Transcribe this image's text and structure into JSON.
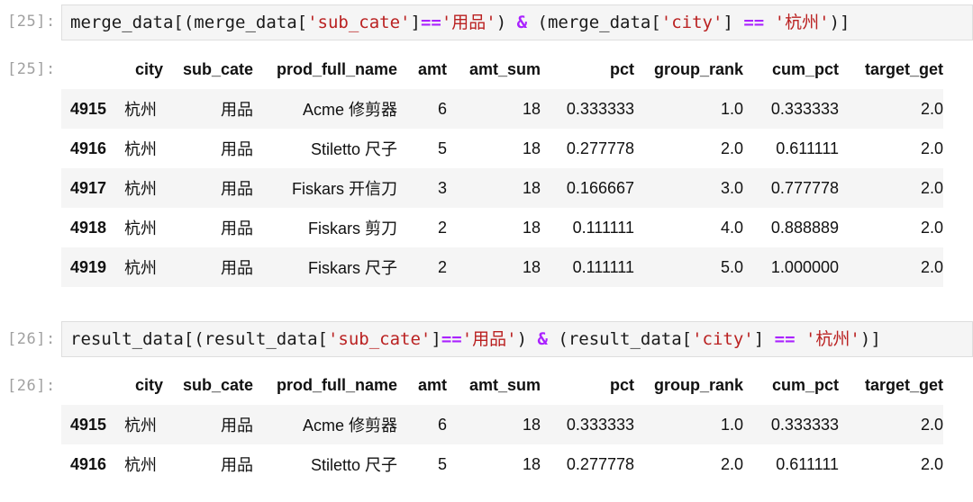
{
  "cells": [
    {
      "input_prompt": "[25]:",
      "code_tokens": [
        {
          "text": "merge_data[(merge_data[",
          "kind": "plain"
        },
        {
          "text": "'sub_cate'",
          "kind": "str"
        },
        {
          "text": "]",
          "kind": "plain"
        },
        {
          "text": "==",
          "kind": "op"
        },
        {
          "text": "'用品'",
          "kind": "str"
        },
        {
          "text": ") ",
          "kind": "plain"
        },
        {
          "text": "&",
          "kind": "op"
        },
        {
          "text": " (merge_data[",
          "kind": "plain"
        },
        {
          "text": "'city'",
          "kind": "str"
        },
        {
          "text": "] ",
          "kind": "plain"
        },
        {
          "text": "==",
          "kind": "op"
        },
        {
          "text": " ",
          "kind": "plain"
        },
        {
          "text": "'杭州'",
          "kind": "str"
        },
        {
          "text": ")]",
          "kind": "plain"
        }
      ],
      "output_prompt": "[25]:",
      "table": {
        "columns": [
          "city",
          "sub_cate",
          "prod_full_name",
          "amt",
          "amt_sum",
          "pct",
          "group_rank",
          "cum_pct",
          "target_get"
        ],
        "rows": [
          {
            "index": "4915",
            "values": [
              "杭州",
              "用品",
              "Acme 修剪器",
              "6",
              "18",
              "0.333333",
              "1.0",
              "0.333333",
              "2.0"
            ]
          },
          {
            "index": "4916",
            "values": [
              "杭州",
              "用品",
              "Stiletto 尺子",
              "5",
              "18",
              "0.277778",
              "2.0",
              "0.611111",
              "2.0"
            ]
          },
          {
            "index": "4917",
            "values": [
              "杭州",
              "用品",
              "Fiskars 开信刀",
              "3",
              "18",
              "0.166667",
              "3.0",
              "0.777778",
              "2.0"
            ]
          },
          {
            "index": "4918",
            "values": [
              "杭州",
              "用品",
              "Fiskars 剪刀",
              "2",
              "18",
              "0.111111",
              "4.0",
              "0.888889",
              "2.0"
            ]
          },
          {
            "index": "4919",
            "values": [
              "杭州",
              "用品",
              "Fiskars 尺子",
              "2",
              "18",
              "0.111111",
              "5.0",
              "1.000000",
              "2.0"
            ]
          }
        ]
      }
    },
    {
      "input_prompt": "[26]:",
      "code_tokens": [
        {
          "text": "result_data[(result_data[",
          "kind": "plain"
        },
        {
          "text": "'sub_cate'",
          "kind": "str"
        },
        {
          "text": "]",
          "kind": "plain"
        },
        {
          "text": "==",
          "kind": "op"
        },
        {
          "text": "'用品'",
          "kind": "str"
        },
        {
          "text": ") ",
          "kind": "plain"
        },
        {
          "text": "&",
          "kind": "op"
        },
        {
          "text": " (result_data[",
          "kind": "plain"
        },
        {
          "text": "'city'",
          "kind": "str"
        },
        {
          "text": "] ",
          "kind": "plain"
        },
        {
          "text": "==",
          "kind": "op"
        },
        {
          "text": " ",
          "kind": "plain"
        },
        {
          "text": "'杭州'",
          "kind": "str"
        },
        {
          "text": ")]",
          "kind": "plain"
        }
      ],
      "output_prompt": "[26]:",
      "table": {
        "columns": [
          "city",
          "sub_cate",
          "prod_full_name",
          "amt",
          "amt_sum",
          "pct",
          "group_rank",
          "cum_pct",
          "target_get"
        ],
        "rows": [
          {
            "index": "4915",
            "values": [
              "杭州",
              "用品",
              "Acme 修剪器",
              "6",
              "18",
              "0.333333",
              "1.0",
              "0.333333",
              "2.0"
            ]
          },
          {
            "index": "4916",
            "values": [
              "杭州",
              "用品",
              "Stiletto 尺子",
              "5",
              "18",
              "0.277778",
              "2.0",
              "0.611111",
              "2.0"
            ]
          }
        ]
      }
    }
  ],
  "colors": {
    "string_literal": "#ba2121",
    "operator": "#aa22ff",
    "prompt": "#a0a0a0",
    "input_background": "#f5f5f5",
    "striped_row": "#f5f5f5"
  }
}
